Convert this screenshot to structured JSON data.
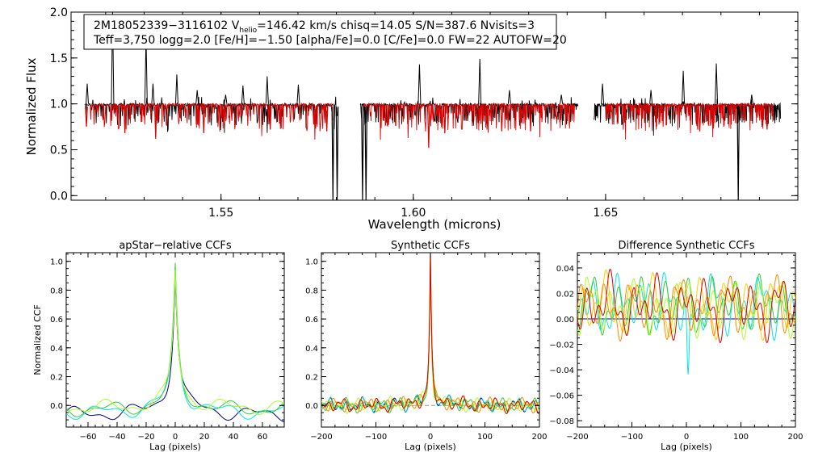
{
  "info_box": {
    "line1": {
      "prefix": "2M18052339−3116102  V",
      "sub": "helio",
      "suffix": "=146.42 km/s  chisq=14.05  S/N=387.6  Nvisits=3"
    },
    "line2": "Teff=3,750 logg=2.0 [Fe/H]=−1.50 [alpha/Fe]=0.0 [C/Fe]=0.0 FW=22 AUTOFW=20"
  },
  "colors": {
    "observed": "#000000",
    "model": "#dd0000",
    "ccf_series": [
      "#00008b",
      "#1f90ff",
      "#00e5e5",
      "#33cc33",
      "#aaff22",
      "#ffcc00",
      "#ff8800",
      "#dd0000"
    ]
  },
  "chart_data": [
    {
      "type": "line",
      "title": "",
      "xlabel": "Wavelength (microns)",
      "ylabel": "Normalized Flux",
      "xlim": [
        1.511,
        1.7
      ],
      "ylim": [
        -0.05,
        2.0
      ],
      "xticks": [
        "1.55",
        "1.60",
        "1.65"
      ],
      "yticks": [
        "0.0",
        "0.5",
        "1.0",
        "1.5",
        "2.0"
      ],
      "series": [
        {
          "key": "observed",
          "segments": [
            [
              1.5145,
              1.5802
            ],
            [
              1.5862,
              1.6429
            ],
            [
              1.647,
              1.6955
            ]
          ]
        },
        {
          "key": "model",
          "segments": [
            [
              1.516,
              1.579
            ],
            [
              1.587,
              1.642
            ],
            [
              1.65,
              1.6935
            ]
          ]
        }
      ],
      "emission_lines": [
        [
          1.5152,
          1.22
        ],
        [
          1.5218,
          2.0
        ],
        [
          1.5305,
          1.73
        ],
        [
          1.5323,
          1.22
        ],
        [
          1.5385,
          1.32
        ],
        [
          1.5438,
          1.15
        ],
        [
          1.5512,
          1.1
        ],
        [
          1.5557,
          1.2
        ],
        [
          1.562,
          1.3
        ],
        [
          1.5701,
          1.21
        ],
        [
          1.6016,
          1.43
        ],
        [
          1.6173,
          1.49
        ],
        [
          1.625,
          1.15
        ],
        [
          1.6385,
          1.1
        ],
        [
          1.6492,
          1.22
        ],
        [
          1.6618,
          1.15
        ],
        [
          1.6702,
          1.36
        ],
        [
          1.6788,
          1.44
        ],
        [
          1.688,
          1.1
        ]
      ],
      "absorption_lines": [
        [
          1.5791,
          -0.05
        ],
        [
          1.5802,
          -0.05
        ],
        [
          1.5868,
          -0.05
        ],
        [
          1.5877,
          -0.05
        ],
        [
          1.604,
          0.52
        ],
        [
          1.515,
          0.75
        ],
        [
          1.6845,
          -0.05
        ],
        [
          1.525,
          0.68
        ],
        [
          1.533,
          0.62
        ],
        [
          1.5455,
          0.68
        ],
        [
          1.5628,
          0.72
        ],
        [
          1.5775,
          0.7
        ],
        [
          1.6082,
          0.68
        ],
        [
          1.623,
          0.7
        ],
        [
          1.6305,
          0.7
        ],
        [
          1.6745,
          0.7
        ],
        [
          1.692,
          0.72
        ]
      ]
    },
    {
      "type": "line",
      "title": "apStar−relative CCFs",
      "xlabel": "Lag (pixels)",
      "ylabel": "Normalized CCF",
      "xlim": [
        -75,
        75
      ],
      "ylim": [
        -0.15,
        1.06
      ],
      "xticks": [
        "−60",
        "−40",
        "−20",
        "0",
        "20",
        "40",
        "60"
      ],
      "yticks": [
        "0.0",
        "0.2",
        "0.4",
        "0.6",
        "0.8",
        "1.0"
      ],
      "series": [
        {
          "color": "#00008b",
          "shift": 0.0
        },
        {
          "color": "#00e5e5",
          "shift": 0.015
        },
        {
          "color": "#33cc33",
          "shift": 0.035
        },
        {
          "color": "#aaff22",
          "shift": 0.05
        }
      ]
    },
    {
      "type": "line",
      "title": "Synthetic CCFs",
      "xlabel": "Lag (pixels)",
      "ylabel": "",
      "xlim": [
        -200,
        200
      ],
      "ylim": [
        -0.15,
        1.06
      ],
      "xticks": [
        "−200",
        "−100",
        "0",
        "100",
        "200"
      ],
      "yticks": [
        "0.0",
        "0.2",
        "0.4",
        "0.6",
        "0.8",
        "1.0"
      ],
      "series": [
        {
          "color": "#00008b"
        },
        {
          "color": "#00e5e5"
        },
        {
          "color": "#33cc33"
        },
        {
          "color": "#aaff22"
        },
        {
          "color": "#ffcc00"
        },
        {
          "color": "#ff8800"
        },
        {
          "color": "#dd0000"
        }
      ]
    },
    {
      "type": "line",
      "title": "Difference Synthetic CCFs",
      "xlabel": "Lag (pixels)",
      "ylabel": "",
      "xlim": [
        -200,
        200
      ],
      "ylim": [
        -0.085,
        0.052
      ],
      "xticks": [
        "−200",
        "−100",
        "0",
        "100",
        "200"
      ],
      "yticks": [
        "−0.08",
        "−0.06",
        "−0.04",
        "−0.02",
        "0.00",
        "0.02",
        "0.04"
      ],
      "series": [
        {
          "color": "#00e5e5"
        },
        {
          "color": "#33cc33"
        },
        {
          "color": "#aaff22"
        },
        {
          "color": "#ffcc00"
        },
        {
          "color": "#ff8800"
        },
        {
          "color": "#dd0000"
        }
      ]
    }
  ]
}
